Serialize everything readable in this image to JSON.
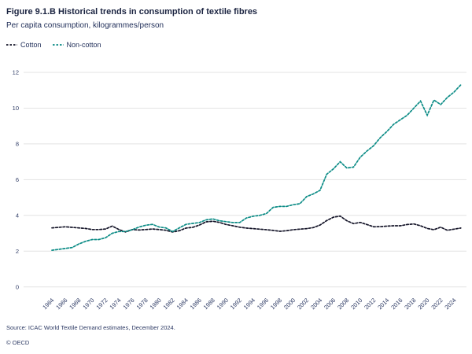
{
  "header": {
    "title": "Figure 9.1.B Historical trends in consumption of textile fibres",
    "subtitle": "Per capita consumption, kilogrammes/person"
  },
  "legend": {
    "items": [
      {
        "label": "Cotton",
        "color": "#141428"
      },
      {
        "label": "Non-cotton",
        "color": "#0c8c86"
      }
    ]
  },
  "footer": {
    "source": "Source: ICAC World Textile Demand estimates, December 2024.",
    "copyright": "© OECD"
  },
  "colors": {
    "text": "#1a2340",
    "tick_text": "#2d3a64",
    "gridline": "#e3e3e3",
    "cotton": "#141428",
    "non_cotton": "#0c8c86"
  },
  "chart_data": {
    "type": "line",
    "title": "Figure 9.1.B Historical trends in consumption of textile fibres",
    "subtitle": "Per capita consumption, kilogrammes/person",
    "xlabel": "",
    "ylabel": "kilogrammes/person",
    "line_style": "dashed",
    "grid": "horizontal",
    "legend_position": "top-left",
    "ylim": [
      0,
      12
    ],
    "yticks": [
      0,
      2,
      4,
      6,
      8,
      10,
      12
    ],
    "xticks": [
      1964,
      1966,
      1968,
      1970,
      1972,
      1974,
      1976,
      1978,
      1980,
      1982,
      1984,
      1986,
      1988,
      1990,
      1992,
      1994,
      1996,
      1998,
      2000,
      2002,
      2004,
      2006,
      2008,
      2010,
      2012,
      2014,
      2016,
      2018,
      2020,
      2022,
      2024
    ],
    "x": [
      1964,
      1965,
      1966,
      1967,
      1968,
      1969,
      1970,
      1971,
      1972,
      1973,
      1974,
      1975,
      1976,
      1977,
      1978,
      1979,
      1980,
      1981,
      1982,
      1983,
      1984,
      1985,
      1986,
      1987,
      1988,
      1989,
      1990,
      1991,
      1992,
      1993,
      1994,
      1995,
      1996,
      1997,
      1998,
      1999,
      2000,
      2001,
      2002,
      2003,
      2004,
      2005,
      2006,
      2007,
      2008,
      2009,
      2010,
      2011,
      2012,
      2013,
      2014,
      2015,
      2016,
      2017,
      2018,
      2019,
      2020,
      2021,
      2022,
      2023,
      2024,
      2025
    ],
    "series": [
      {
        "name": "Cotton",
        "color": "#141428",
        "values": [
          3.3,
          3.33,
          3.36,
          3.33,
          3.3,
          3.27,
          3.21,
          3.21,
          3.24,
          3.4,
          3.21,
          3.07,
          3.21,
          3.18,
          3.21,
          3.24,
          3.21,
          3.17,
          3.07,
          3.14,
          3.29,
          3.33,
          3.46,
          3.64,
          3.67,
          3.61,
          3.49,
          3.42,
          3.34,
          3.29,
          3.26,
          3.23,
          3.2,
          3.16,
          3.11,
          3.14,
          3.2,
          3.23,
          3.26,
          3.32,
          3.46,
          3.71,
          3.9,
          3.96,
          3.7,
          3.54,
          3.61,
          3.49,
          3.36,
          3.37,
          3.4,
          3.42,
          3.42,
          3.49,
          3.52,
          3.42,
          3.27,
          3.2,
          3.34,
          3.17,
          3.23,
          3.29
        ]
      },
      {
        "name": "Non-cotton",
        "color": "#0c8c86",
        "values": [
          2.05,
          2.1,
          2.15,
          2.2,
          2.4,
          2.55,
          2.65,
          2.65,
          2.75,
          3.0,
          3.1,
          3.1,
          3.2,
          3.35,
          3.45,
          3.5,
          3.35,
          3.3,
          3.1,
          3.3,
          3.5,
          3.55,
          3.6,
          3.75,
          3.8,
          3.7,
          3.65,
          3.6,
          3.6,
          3.85,
          3.95,
          4.0,
          4.1,
          4.45,
          4.5,
          4.5,
          4.6,
          4.65,
          5.05,
          5.2,
          5.4,
          6.3,
          6.6,
          7.0,
          6.65,
          6.7,
          7.25,
          7.6,
          7.9,
          8.35,
          8.7,
          9.1,
          9.35,
          9.6,
          10.0,
          10.4,
          9.6,
          10.45,
          10.2,
          10.6,
          10.9,
          11.3
        ]
      }
    ]
  }
}
